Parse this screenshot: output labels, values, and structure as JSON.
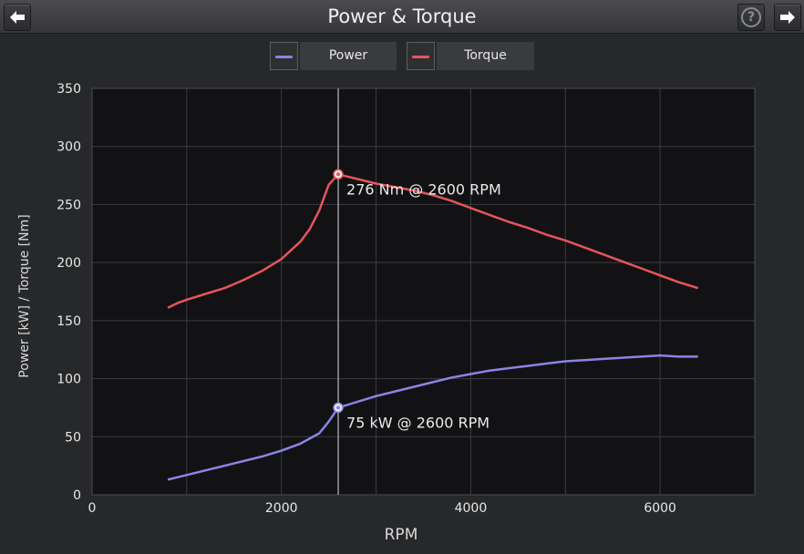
{
  "header": {
    "title": "Power & Torque",
    "back_icon": "arrow-left-icon",
    "next_icon": "arrow-right-icon",
    "help_label": "?"
  },
  "legend": [
    {
      "label": "Power",
      "color": "#8a84e6"
    },
    {
      "label": "Torque",
      "color": "#e6555b"
    }
  ],
  "chart_data": {
    "type": "line",
    "xlabel": "RPM",
    "ylabel": "Power [kW] / Torque [Nm]",
    "xlim": [
      0,
      7000
    ],
    "ylim": [
      0,
      350
    ],
    "x_ticks": [
      0,
      2000,
      4000,
      6000
    ],
    "y_ticks": [
      0,
      50,
      100,
      150,
      200,
      250,
      300,
      350
    ],
    "grid": true,
    "legend_position": "top-center",
    "cursor_x": 2600,
    "series": [
      {
        "name": "Power",
        "color": "#8a84e6",
        "x": [
          800,
          1000,
          1200,
          1400,
          1600,
          1800,
          2000,
          2200,
          2400,
          2500,
          2600,
          2800,
          3000,
          3200,
          3400,
          3600,
          3800,
          4000,
          4200,
          4400,
          4600,
          4800,
          5000,
          5200,
          5400,
          5600,
          5800,
          6000,
          6200,
          6400
        ],
        "values": [
          13,
          17,
          21,
          25,
          29,
          33,
          38,
          44,
          53,
          63,
          75,
          80,
          85,
          89,
          93,
          97,
          101,
          104,
          107,
          109,
          111,
          113,
          115,
          116,
          117,
          118,
          119,
          120,
          119,
          119
        ]
      },
      {
        "name": "Torque",
        "color": "#e6555b",
        "x": [
          800,
          900,
          1000,
          1200,
          1400,
          1600,
          1800,
          2000,
          2200,
          2300,
          2400,
          2500,
          2600,
          2800,
          3000,
          3200,
          3400,
          3600,
          3800,
          4000,
          4200,
          4400,
          4600,
          4800,
          5000,
          5200,
          5400,
          5600,
          5800,
          6000,
          6200,
          6400
        ],
        "values": [
          161,
          165,
          168,
          173,
          178,
          185,
          193,
          203,
          218,
          229,
          245,
          267,
          276,
          272,
          268,
          265,
          262,
          258,
          253,
          247,
          241,
          235,
          230,
          224,
          219,
          213,
          207,
          201,
          195,
          189,
          183,
          178
        ]
      }
    ],
    "annotations": [
      {
        "series": "Torque",
        "x": 2600,
        "y": 276,
        "text": "276 Nm @ 2600 RPM"
      },
      {
        "series": "Power",
        "x": 2600,
        "y": 75,
        "text": "75 kW @ 2600 RPM"
      }
    ]
  }
}
